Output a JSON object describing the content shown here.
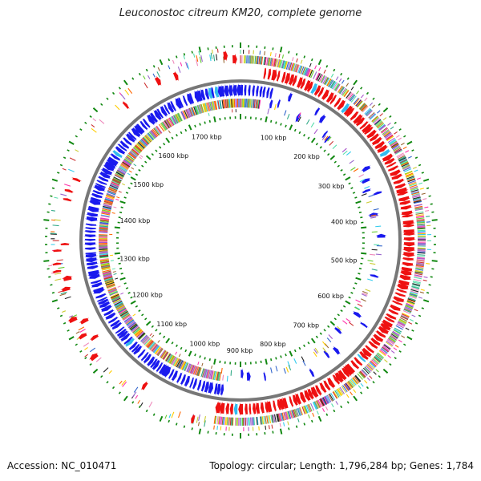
{
  "title": "Leuconostoc citreum KM20, complete genome",
  "footer": {
    "accession": "Accession: NC_010471",
    "summary": "Topology: circular; Length: 1,796,284 bp; Genes: 1,784"
  },
  "genome": {
    "length_bp": 1796284,
    "gene_count": 1784,
    "topology": "circular"
  },
  "scale_labels": [
    {
      "text": "100 kbp",
      "position_bp": 100000
    },
    {
      "text": "200 kbp",
      "position_bp": 200000
    },
    {
      "text": "300 kbp",
      "position_bp": 300000
    },
    {
      "text": "400 kbp",
      "position_bp": 400000
    },
    {
      "text": "500 kbp",
      "position_bp": 500000
    },
    {
      "text": "600 kbp",
      "position_bp": 600000
    },
    {
      "text": "700 kbp",
      "position_bp": 700000
    },
    {
      "text": "800 kbp",
      "position_bp": 800000
    },
    {
      "text": "900 kbp",
      "position_bp": 900000
    },
    {
      "text": "1000 kbp",
      "position_bp": 1000000
    },
    {
      "text": "1100 kbp",
      "position_bp": 1100000
    },
    {
      "text": "1200 kbp",
      "position_bp": 1200000
    },
    {
      "text": "1300 kbp",
      "position_bp": 1300000
    },
    {
      "text": "1400 kbp",
      "position_bp": 1400000
    },
    {
      "text": "1500 kbp",
      "position_bp": 1500000
    },
    {
      "text": "1600 kbp",
      "position_bp": 1600000
    },
    {
      "text": "1700 kbp",
      "position_bp": 1700000
    }
  ],
  "colors": {
    "forward_strand": "#ee1111",
    "reverse_strand": "#1a1aee",
    "backbone": "#777777",
    "tick": "#118811",
    "highlight": "#33bbee",
    "category_palette": [
      "#ff33aa",
      "#33ccee",
      "#996633",
      "#9966cc",
      "#66cc33",
      "#ffcc00",
      "#ff6600",
      "#cc3333",
      "#3366cc",
      "#33aa88",
      "#aa55cc",
      "#ee88bb",
      "#222222",
      "#55ddaa",
      "#cccc33"
    ]
  }
}
